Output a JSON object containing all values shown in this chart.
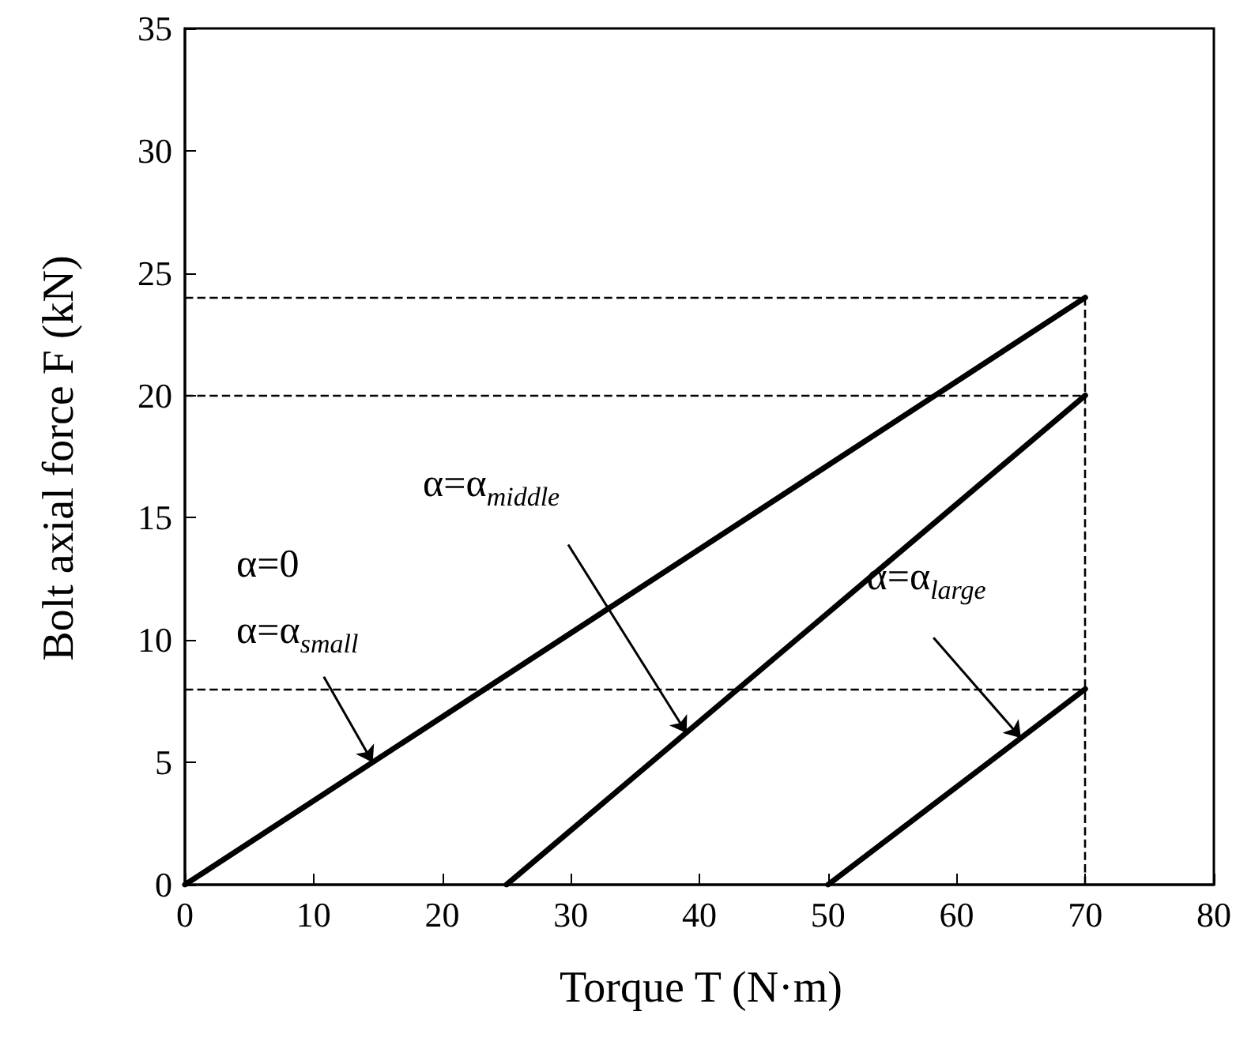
{
  "chart_data": {
    "type": "line",
    "xlabel": "Torque T (N·m)",
    "ylabel": "Bolt axial force F (kN)",
    "xlim": [
      0,
      80
    ],
    "xticks": [
      0,
      10,
      20,
      30,
      40,
      50,
      60,
      70,
      80
    ],
    "ylim": [
      0,
      35
    ],
    "yticks": [
      0,
      5,
      10,
      15,
      20,
      25,
      30,
      35
    ],
    "series": [
      {
        "color": "#000000",
        "x": [
          0,
          70
        ],
        "values": [
          0,
          24
        ]
      },
      {
        "color": "#000000",
        "x": [
          25,
          70
        ],
        "values": [
          0,
          20
        ]
      },
      {
        "color": "#000000",
        "x": [
          50,
          70
        ],
        "values": [
          0,
          8
        ]
      }
    ],
    "ref_lines": [
      {
        "axis": "y",
        "value": 24,
        "line_style": "dashed",
        "color": "#000000"
      },
      {
        "axis": "y",
        "value": 20,
        "line_style": "dashed",
        "color": "#000000"
      },
      {
        "axis": "y",
        "value": 8,
        "line_style": "dashed",
        "color": "#000000"
      },
      {
        "axis": "x",
        "value": 70,
        "line_style": "dashed",
        "color": "#000000"
      }
    ],
    "annotations": [
      "α=0",
      {
        "text": "α=α$_{small}$",
        "x": 14.6,
        "y": 5
      },
      {
        "text": "α=α$_{middle}$",
        "x": 39,
        "y": 6.2
      },
      {
        "text": "α=α$_{large}$",
        "x": 65,
        "y": 6
      }
    ],
    "grid": false,
    "marker": "none",
    "line_style": "solid"
  }
}
